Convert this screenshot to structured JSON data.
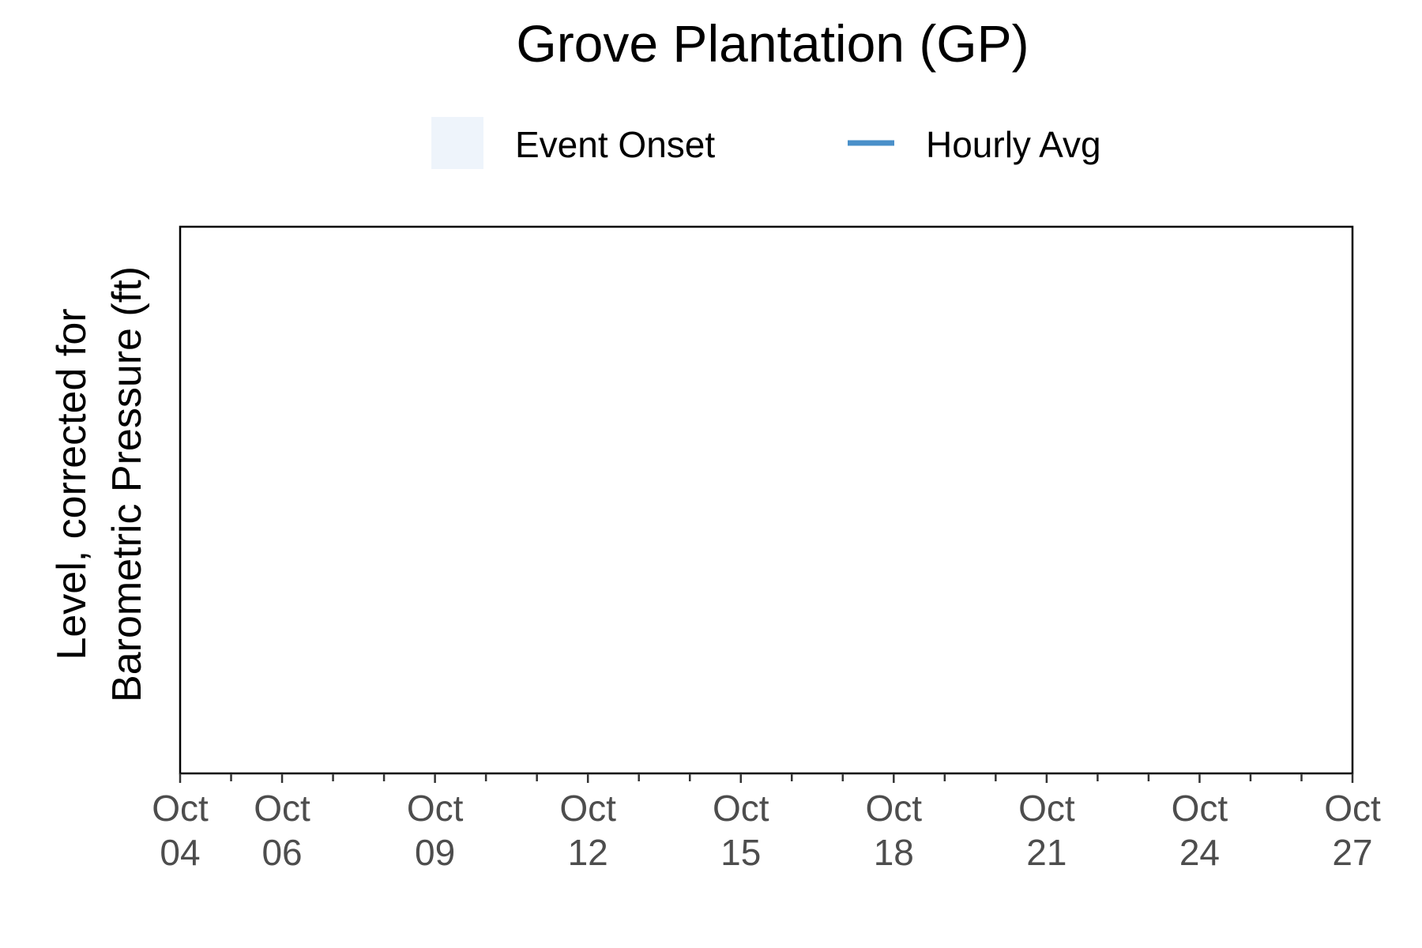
{
  "chart_data": {
    "type": "line",
    "title": "Grove Plantation (GP)",
    "xlabel": "",
    "ylabel": "Level, corrected for\nBarometric Pressure (ft)",
    "xlim": [
      "Oct 04",
      "Oct 27"
    ],
    "x_ticks": [
      {
        "label": "Oct\n04",
        "day": 4
      },
      {
        "label": "Oct\n06",
        "day": 6
      },
      {
        "label": "Oct\n09",
        "day": 9
      },
      {
        "label": "Oct\n12",
        "day": 12
      },
      {
        "label": "Oct\n15",
        "day": 15
      },
      {
        "label": "Oct\n18",
        "day": 18
      },
      {
        "label": "Oct\n21",
        "day": 21
      },
      {
        "label": "Oct\n24",
        "day": 24
      },
      {
        "label": "Oct\n27",
        "day": 27
      }
    ],
    "minor_tick_days": [
      5,
      7,
      8,
      10,
      11,
      13,
      14,
      16,
      17,
      19,
      20,
      22,
      23,
      25,
      26
    ],
    "legend": {
      "placement": "top",
      "items": [
        {
          "label": "Event Onset",
          "kind": "fill",
          "color": "#eef4fb"
        },
        {
          "label": "Hourly Avg",
          "kind": "line",
          "color": "#4a90c9"
        }
      ]
    },
    "series": [
      {
        "name": "Hourly Avg",
        "color": "#4a90c9",
        "values": []
      }
    ],
    "grid": false
  }
}
